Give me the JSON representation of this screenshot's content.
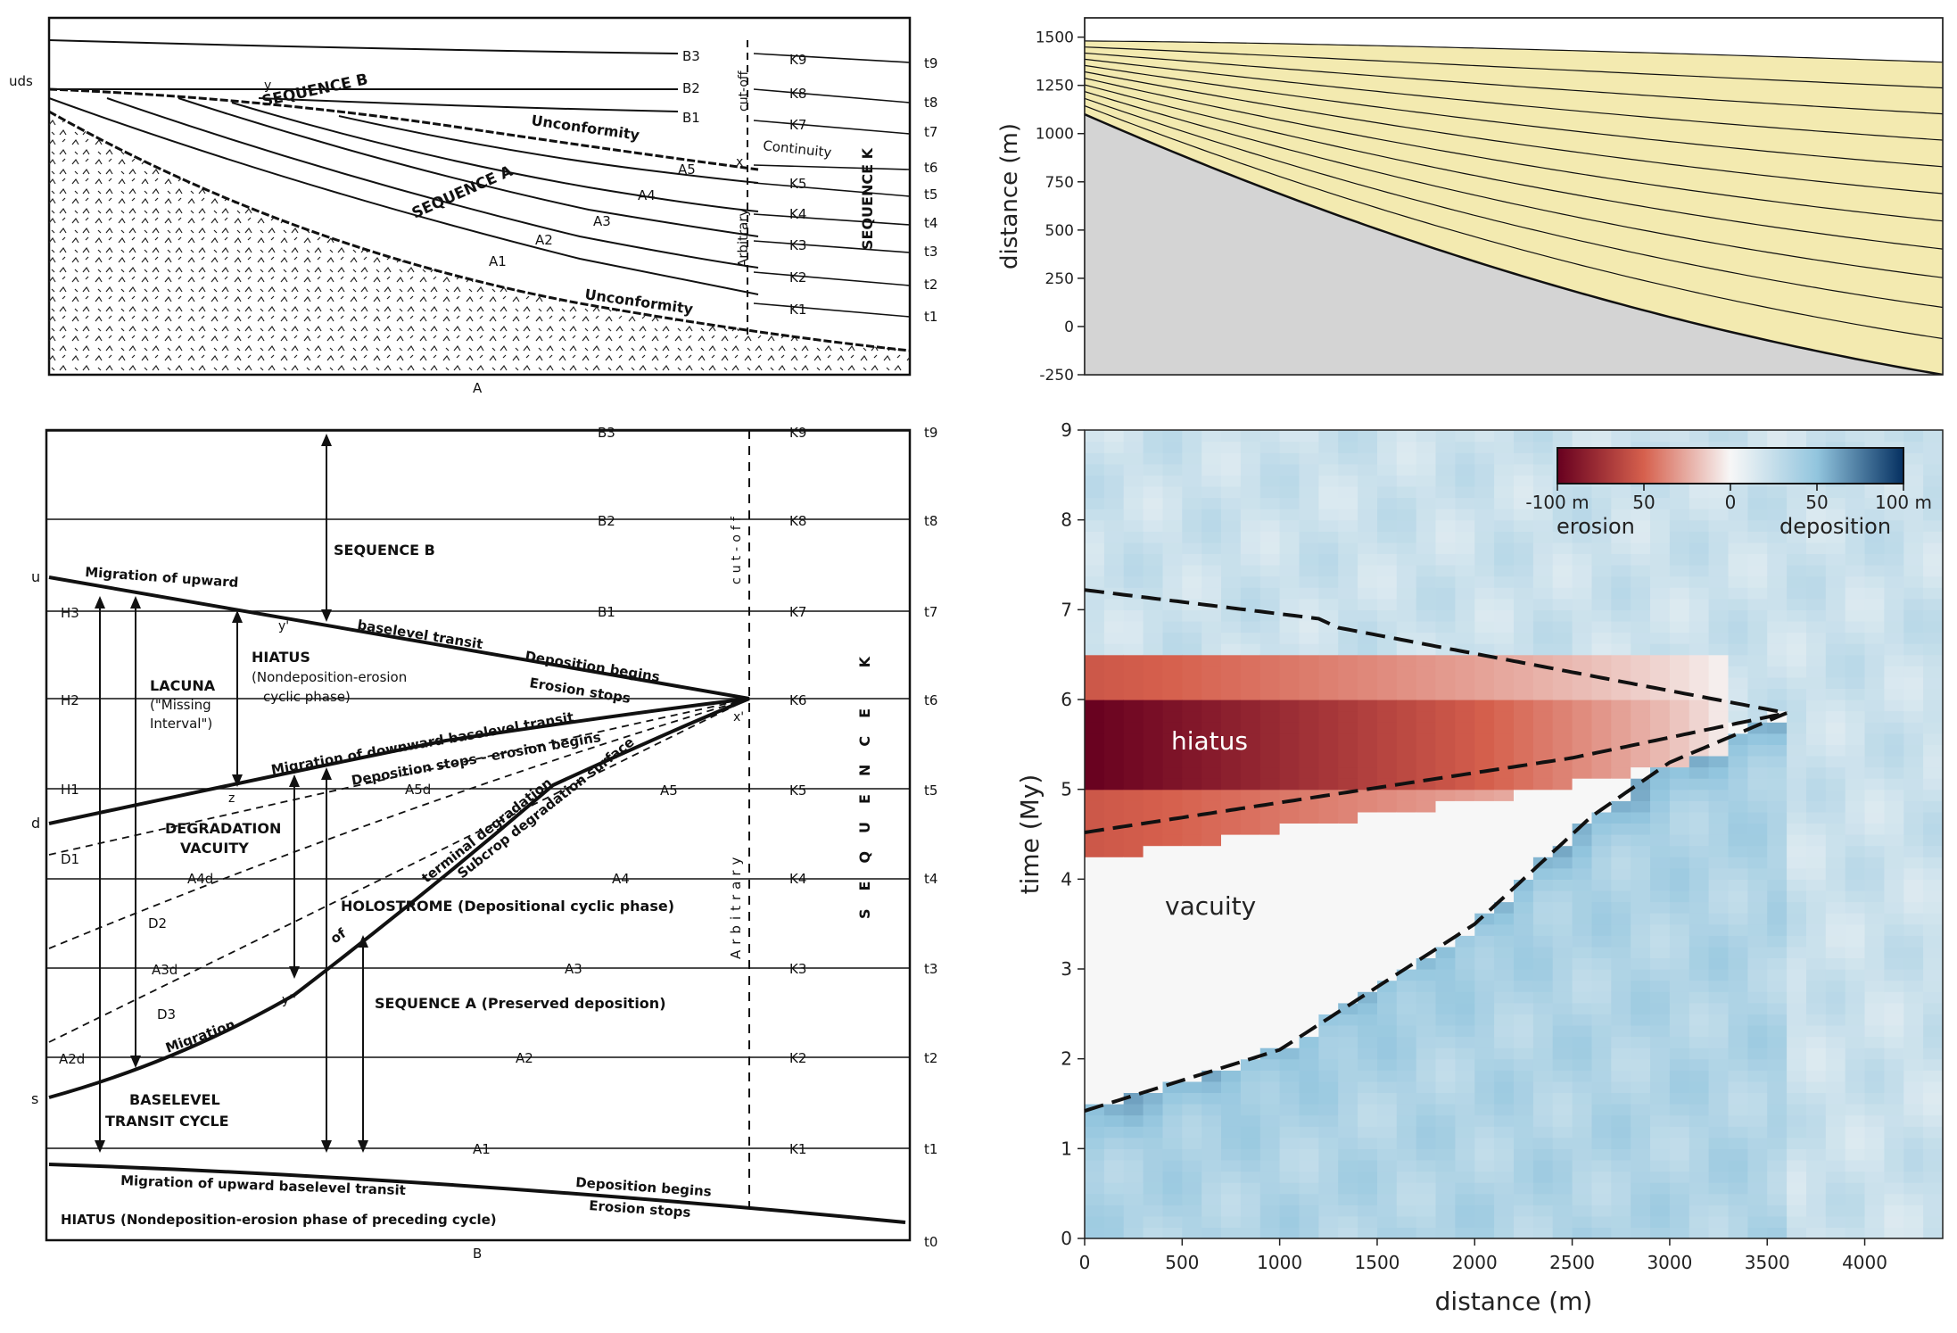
{
  "panel_a": {
    "caption": "A",
    "uds": "uds",
    "seq_b": "SEQUENCE B",
    "seq_a": "SEQUENCE A",
    "seq_k": "SEQUENCE K",
    "unconformity_upper": "Unconformity",
    "unconformity_lower": "Unconformity",
    "continuity": "Continuity",
    "arbitrary": "Arbitrary",
    "cutoff": "cut-off",
    "y": "y",
    "x": "x",
    "b_labels": [
      "B3",
      "B2",
      "B1"
    ],
    "a_labels": [
      "A5",
      "A4",
      "A3",
      "A2",
      "A1"
    ],
    "k_labels": [
      "K9",
      "K8",
      "K7",
      "K5",
      "K4",
      "K3",
      "K2",
      "K1"
    ],
    "t_labels": [
      "t9",
      "t8",
      "t7",
      "t6",
      "t5",
      "t4",
      "t3",
      "t2",
      "t1"
    ]
  },
  "panel_b": {
    "caption": "B",
    "u": "u",
    "d": "d",
    "s": "s",
    "h_labels": [
      "H3",
      "H2",
      "H1"
    ],
    "d_labels": [
      "D1",
      "D2",
      "D3"
    ],
    "ad_labels": [
      "A5d",
      "A4d",
      "A3d",
      "A2d"
    ],
    "b_labels": [
      "B3",
      "B2",
      "B1"
    ],
    "a_labels": [
      "A5",
      "A4",
      "A3",
      "A2",
      "A1"
    ],
    "k_labels": [
      "K9",
      "K8",
      "K7",
      "K6",
      "K5",
      "K4",
      "K3",
      "K2",
      "K1"
    ],
    "t_labels": [
      "t9",
      "t8",
      "t7",
      "t6",
      "t5",
      "t4",
      "t3",
      "t2",
      "t1",
      "t0"
    ],
    "sequence_b": "SEQUENCE B",
    "migration_upward": "Migration of upward",
    "baselevel_transit": "baselevel transit",
    "deposition_begins": "Deposition begins",
    "erosion_stops": "Erosion stops",
    "hiatus_title": "HIATUS",
    "hiatus_sub1": "(Nondeposition-erosion",
    "hiatus_sub2": "cyclic phase)",
    "lacuna1": "LACUNA",
    "lacuna2": "(\"Missing",
    "lacuna3": "Interval\")",
    "migration_downward": "Migration of downward baselevel transit",
    "deposition_stops": "Deposition stops - erosion begins",
    "terminal_degradation": "terminal degradation",
    "subcrop_surface": "Subcrop degradation surface",
    "degradation1": "DEGRADATION",
    "degradation2": "VACUITY",
    "holostrome": "HOLOSTROME (Depositional cyclic phase)",
    "of": "of",
    "migration": "Migration",
    "sequence_a": "SEQUENCE A (Preserved deposition)",
    "baselevel1": "BASELEVEL",
    "baselevel2": "TRANSIT CYCLE",
    "migration_bottom": "Migration of upward baselevel transit",
    "deposition_begins2": "Deposition begins",
    "erosion_stops2": "Erosion stops",
    "hiatus_bottom": "HIATUS (Nondeposition-erosion phase of preceding cycle)",
    "arbitrary": "Arbitrary",
    "cutoff": "cut-off",
    "sequence_k": "SEQUENCE K",
    "y_prime": "y'",
    "y_dprime": "y''",
    "x_prime": "x'",
    "z": "z"
  },
  "cross_section": {
    "ylabel": "distance (m)",
    "yticks": [
      1500,
      1250,
      1000,
      750,
      500,
      250,
      0,
      -250
    ],
    "ylim": [
      -250,
      1600
    ],
    "xlim": [
      0,
      4400
    ],
    "fill_color": "#f3eab0",
    "basement_color": "#d4d4d4"
  },
  "chart_data": {
    "type": "heatmap",
    "title": "",
    "xlabel": "distance (m)",
    "ylabel": "time (My)",
    "x_ticks": [
      0,
      500,
      1000,
      1500,
      2000,
      2500,
      3000,
      3500,
      4000
    ],
    "y_ticks": [
      0,
      1,
      2,
      3,
      4,
      5,
      6,
      7,
      8,
      9
    ],
    "xlim": [
      0,
      4400
    ],
    "ylim": [
      0,
      9
    ],
    "colorbar": {
      "ticks": [
        "-100 m",
        "50",
        "0",
        "50",
        "100 m"
      ],
      "left_label": "erosion",
      "right_label": "deposition",
      "range": [
        -100,
        100
      ],
      "colors": [
        "#67001f",
        "#d6604d",
        "#f7f7f7",
        "#92c5de",
        "#053061"
      ]
    },
    "annotations": [
      "hiatus",
      "vacuity"
    ],
    "hiatus_envelope": {
      "upper": [
        [
          0,
          7.22
        ],
        [
          1200,
          6.9
        ],
        [
          1300,
          6.8
        ],
        [
          3600,
          5.85
        ]
      ],
      "lower": [
        [
          0,
          4.52
        ],
        [
          2500,
          5.35
        ],
        [
          3600,
          5.85
        ]
      ]
    },
    "vacuity_boundary": [
      [
        0,
        1.42
      ],
      [
        1000,
        2.1
      ],
      [
        2000,
        3.5
      ],
      [
        2600,
        4.7
      ],
      [
        3000,
        5.3
      ],
      [
        3600,
        5.85
      ]
    ]
  }
}
